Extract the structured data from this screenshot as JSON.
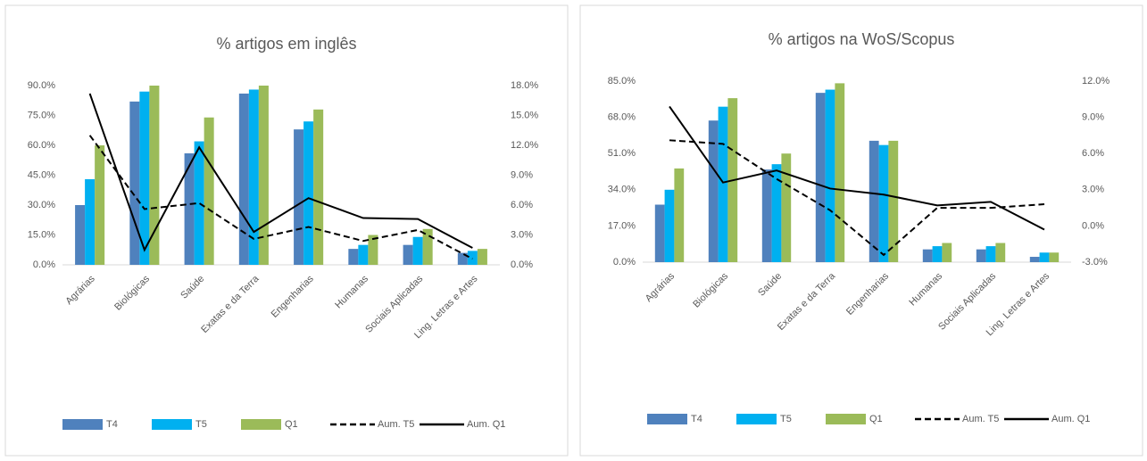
{
  "chart_data": [
    {
      "type": "bar",
      "title": "% artigos em inglês",
      "categories": [
        "Agrárias",
        "Biológicas",
        "Saúde",
        "Exatas e da Terra",
        "Engenharias",
        "Humanas",
        "Sociais Aplicadas",
        "Ling. Letras e Artes"
      ],
      "series": [
        {
          "name": "T4",
          "color": "#4f81bd",
          "values": [
            30,
            82,
            56,
            86,
            68,
            8,
            10,
            6
          ]
        },
        {
          "name": "T5",
          "color": "#00b0f0",
          "values": [
            43,
            87,
            62,
            88,
            72,
            10,
            14,
            7
          ]
        },
        {
          "name": "Q1",
          "color": "#9bbb59",
          "values": [
            60,
            93,
            74,
            94,
            78,
            15,
            18,
            8
          ]
        },
        {
          "name": "Aum. T5",
          "type": "line",
          "dash": true,
          "color": "#000000",
          "axis": "y2",
          "values": [
            13.0,
            5.6,
            6.2,
            2.6,
            3.8,
            2.4,
            3.5,
            0.6
          ]
        },
        {
          "name": "Aum. Q1",
          "type": "line",
          "dash": false,
          "color": "#000000",
          "axis": "y2",
          "values": [
            17.2,
            1.5,
            11.8,
            3.3,
            6.7,
            4.7,
            4.6,
            1.7
          ]
        }
      ],
      "ylim": [
        0,
        90
      ],
      "yticks": [
        {
          "value": 0,
          "label": "0.0%"
        },
        {
          "value": 15,
          "label": "15.0%"
        },
        {
          "value": 30,
          "label": "30.0%"
        },
        {
          "value": 45,
          "label": "45.0%"
        },
        {
          "value": 60,
          "label": "60.0%"
        },
        {
          "value": 75,
          "label": "75.0%"
        },
        {
          "value": 90,
          "label": "90.0%"
        }
      ],
      "y2lim": [
        0,
        18
      ],
      "y2ticks": [
        {
          "value": 0,
          "label": "0.0%"
        },
        {
          "value": 3,
          "label": "3.0%"
        },
        {
          "value": 6,
          "label": "6.0%"
        },
        {
          "value": 9,
          "label": "9.0%"
        },
        {
          "value": 12,
          "label": "12.0%"
        },
        {
          "value": 15,
          "label": "15.0%"
        },
        {
          "value": 18,
          "label": "18.0%"
        }
      ],
      "grid": false,
      "legend": "bottom"
    },
    {
      "type": "bar",
      "title": "% artigos na WoS/Scopus",
      "categories": [
        "Agrárias",
        "Biológicas",
        "Saúde",
        "Exatas e da Terra",
        "Engenharias",
        "Humanas",
        "Sociais Aplicadas",
        "Ling. Letras e Artes"
      ],
      "series": [
        {
          "name": "T4",
          "color": "#4f81bd",
          "values": [
            27,
            66.5,
            43.5,
            79.5,
            57,
            6,
            6,
            2.5
          ]
        },
        {
          "name": "T5",
          "color": "#00b0f0",
          "values": [
            34,
            73,
            46,
            81,
            55,
            7.5,
            7.5,
            4.5
          ]
        },
        {
          "name": "Q1",
          "color": "#9bbb59",
          "values": [
            44,
            77,
            51,
            84,
            57,
            9,
            9,
            4.5
          ]
        },
        {
          "name": "Aum. T5",
          "type": "line",
          "dash": true,
          "color": "#000000",
          "axis": "y2",
          "values": [
            7.1,
            6.8,
            3.9,
            1.3,
            -2.4,
            1.5,
            1.5,
            1.8
          ]
        },
        {
          "name": "Aum. Q1",
          "type": "line",
          "dash": false,
          "color": "#000000",
          "axis": "y2",
          "values": [
            9.9,
            3.6,
            4.6,
            3.1,
            2.6,
            1.7,
            2.0,
            -0.3
          ]
        }
      ],
      "ylim": [
        0,
        85
      ],
      "yticks": [
        {
          "value": 0,
          "label": "0.0%"
        },
        {
          "value": 17,
          "label": "17.0%"
        },
        {
          "value": 34,
          "label": "34.0%"
        },
        {
          "value": 51,
          "label": "51.0%"
        },
        {
          "value": 68,
          "label": "68.0%"
        },
        {
          "value": 85,
          "label": "85.0%"
        }
      ],
      "y2lim": [
        -3,
        12
      ],
      "y2ticks": [
        {
          "value": -3,
          "label": "-3.0%"
        },
        {
          "value": 0,
          "label": "0.0%"
        },
        {
          "value": 3,
          "label": "3.0%"
        },
        {
          "value": 6,
          "label": "6.0%"
        },
        {
          "value": 9,
          "label": "9.0%"
        },
        {
          "value": 12,
          "label": "12.0%"
        }
      ],
      "grid": false,
      "legend": "bottom"
    }
  ]
}
